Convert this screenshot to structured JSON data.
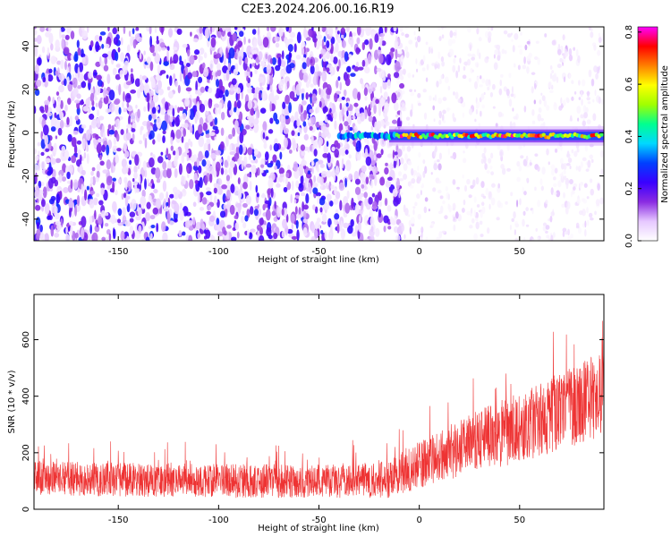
{
  "title": "C2E3.2024.206.00.16.R19",
  "chart_data": [
    {
      "type": "heatmap",
      "xlabel": "Height of straight line (km)",
      "ylabel": "Frequency (Hz)",
      "xlim": [
        -192,
        92
      ],
      "ylim": [
        -50,
        49
      ],
      "xticks": [
        -150,
        -100,
        -50,
        0,
        50
      ],
      "yticks": [
        -40,
        -20,
        0,
        20,
        40
      ],
      "colorbar": {
        "label": "Normalized spectral amplitude",
        "range": [
          0,
          0.82
        ],
        "ticks": [
          "0.0",
          "0.2",
          "0.4",
          "0.6",
          "0.8"
        ],
        "colormap": [
          "#ffffff",
          "#e6c8ff",
          "#8a2be2",
          "#3a00ff",
          "#0040ff",
          "#00d8ff",
          "#00ff90",
          "#a0ff00",
          "#ffff00",
          "#ff8000",
          "#ff0000",
          "#ff00ff"
        ]
      },
      "features": {
        "noise_region_km": [
          -192,
          -12
        ],
        "noise_amplitude": 0.12,
        "faint_region_km": [
          -12,
          92
        ],
        "signal_line": {
          "start_km": -40,
          "end_km": 92,
          "frequency_hz": -1.5,
          "peak_amplitude": 0.8
        }
      }
    },
    {
      "type": "line",
      "xlabel": "Height of straight line (km)",
      "ylabel": "SNR (10 * v/v)",
      "xlim": [
        -192,
        92
      ],
      "ylim": [
        0,
        760
      ],
      "xticks": [
        -150,
        -100,
        -50,
        0,
        50
      ],
      "yticks": [
        0,
        200,
        400,
        600
      ],
      "series_color": "#ee3333",
      "envelope": {
        "x": [
          -192,
          -150,
          -100,
          -50,
          -15,
          0,
          25,
          50,
          75,
          92
        ],
        "mean": [
          110,
          105,
          100,
          100,
          105,
          160,
          230,
          290,
          360,
          410
        ],
        "spread": [
          60,
          60,
          60,
          60,
          65,
          85,
          105,
          125,
          140,
          150
        ]
      }
    }
  ]
}
